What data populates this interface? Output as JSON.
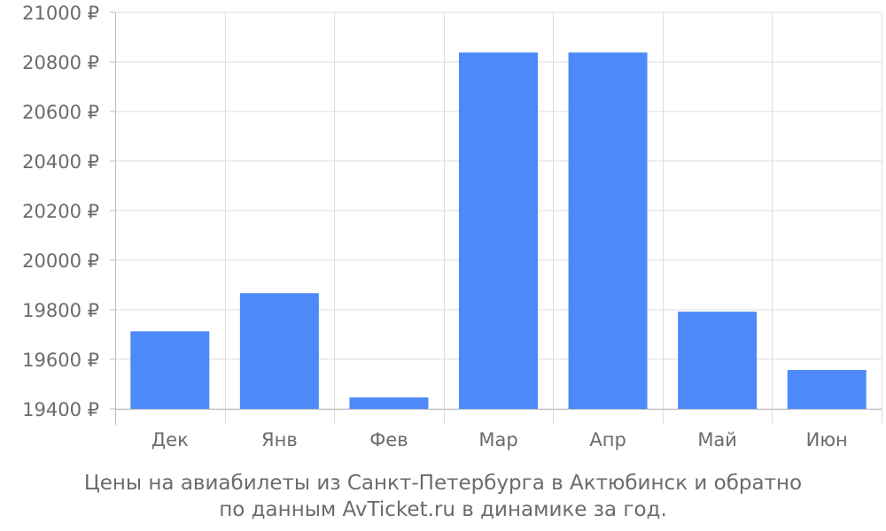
{
  "chart_data": {
    "type": "bar",
    "categories": [
      "Дек",
      "Янв",
      "Фев",
      "Мар",
      "Апр",
      "Май",
      "Июн"
    ],
    "values": [
      19713,
      19867,
      19446,
      20838,
      20838,
      19792,
      19557
    ],
    "y_ticks": [
      "19400 ₽",
      "19600 ₽",
      "19800 ₽",
      "20000 ₽",
      "20200 ₽",
      "20400 ₽",
      "20600 ₽",
      "20800 ₽",
      "21000 ₽"
    ],
    "ylim": [
      19400,
      21000
    ],
    "grid": true,
    "legend": "none",
    "bar_color": "#4d89f9",
    "caption": {
      "line1": "Цены на авиабилеты из Санкт-Петербурга в Актюбинск и обратно",
      "line2": "по данным AvTicket.ru в динамике за год."
    }
  }
}
